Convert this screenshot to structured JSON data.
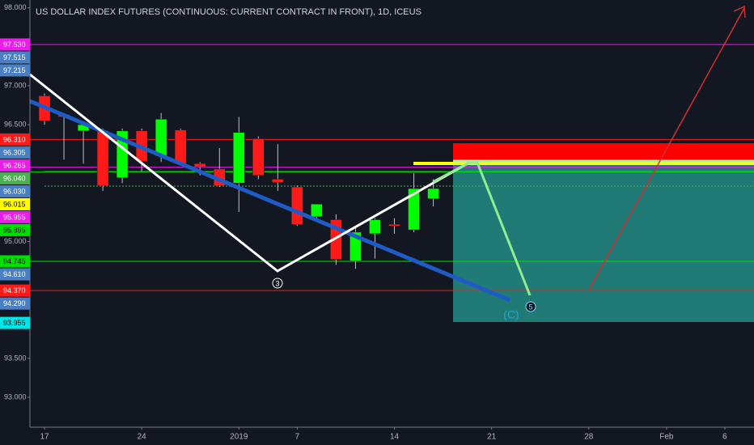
{
  "chart_data": {
    "type": "candlestick",
    "title": "US DOLLAR INDEX FUTURES (CONTINUOUS: CURRENT CONTRACT IN FRONT), 1D, ICEUS",
    "up_color": "#00ff00",
    "down_color": "#ff1a1a",
    "open": [
      96.87,
      96.63,
      96.42,
      96.42,
      95.82,
      96.42,
      96.1,
      96.43,
      96.0,
      95.93,
      95.75,
      96.32,
      95.8,
      95.7,
      95.32,
      95.28,
      94.75,
      95.1,
      95.22,
      95.15,
      95.55
    ],
    "high": [
      96.9,
      96.65,
      96.5,
      96.45,
      96.45,
      96.45,
      96.65,
      96.45,
      96.02,
      96.2,
      96.6,
      96.35,
      96.25,
      95.72,
      95.48,
      95.35,
      95.2,
      95.3,
      95.3,
      95.88,
      95.8
    ],
    "low": [
      96.5,
      96.05,
      96.0,
      95.65,
      95.75,
      95.9,
      96.02,
      95.98,
      95.85,
      95.7,
      95.38,
      95.8,
      95.65,
      95.2,
      95.25,
      94.7,
      94.65,
      94.78,
      95.1,
      95.12,
      95.45
    ],
    "close": [
      96.55,
      96.6,
      96.5,
      95.72,
      96.42,
      96.03,
      96.57,
      96.0,
      95.96,
      95.72,
      96.4,
      95.85,
      95.76,
      95.22,
      95.48,
      94.77,
      95.12,
      95.28,
      95.2,
      95.68,
      95.68
    ],
    "xlim": [
      -0.75,
      36.5
    ],
    "xticks": [
      {
        "value": 0,
        "label": "17"
      },
      {
        "value": 5,
        "label": "24"
      },
      {
        "value": 10,
        "label": "2019"
      },
      {
        "value": 13,
        "label": "7"
      },
      {
        "value": 18,
        "label": "14"
      },
      {
        "value": 23,
        "label": "21"
      },
      {
        "value": 28,
        "label": "28"
      },
      {
        "value": 32,
        "label": "Feb"
      },
      {
        "value": 35,
        "label": "6"
      }
    ],
    "ylim": [
      92.616,
      98.101
    ],
    "yticks": [
      {
        "value": 98,
        "label": "98.000"
      },
      {
        "value": 97,
        "label": "97.000"
      },
      {
        "value": 96.5,
        "label": "96.500"
      },
      {
        "value": 95,
        "label": "95.000"
      },
      {
        "value": 93.5,
        "label": "93.500"
      },
      {
        "value": 93,
        "label": "93.000"
      }
    ],
    "price_levels": [
      {
        "value": 97.53,
        "label": "97.530",
        "color": "#e91ee9",
        "line": true
      },
      {
        "value": 97.515,
        "label": "97.515",
        "color": "#4a7fc1",
        "line": false
      },
      {
        "value": 97.215,
        "label": "97.215",
        "color": "#4a7fc1",
        "line": false
      },
      {
        "value": 96.31,
        "label": "96.310",
        "color": "#ff1a1a",
        "line": true
      },
      {
        "value": 96.305,
        "label": "96.305",
        "color": "#4a7fc1",
        "line": false
      },
      {
        "value": 96.265,
        "label": "96.265",
        "color": "#e91ee9",
        "line": false
      },
      {
        "value": 96.04,
        "label": "96.040",
        "color": "#4caf50",
        "line": false
      },
      {
        "value": 96.03,
        "label": "96.030",
        "color": "#4a7fc1",
        "line": false
      },
      {
        "value": 96.015,
        "label": "96.015",
        "color": "#ffff00",
        "line": false
      },
      {
        "value": 95.955,
        "label": "95.955",
        "color": "#e91ee9",
        "line": true
      },
      {
        "value": 95.895,
        "label": "95.895",
        "color": "#00e000",
        "line": true
      },
      {
        "value": 94.745,
        "label": "94.745",
        "color": "#00e000",
        "line": true
      },
      {
        "value": 94.61,
        "label": "94.610",
        "color": "#4a7fc1",
        "line": false
      },
      {
        "value": 94.37,
        "label": "94.370",
        "color": "#ff1a1a",
        "line": true
      },
      {
        "value": 94.29,
        "label": "94.290",
        "color": "#4a7fc1",
        "line": false
      },
      {
        "value": 93.955,
        "label": "93.955",
        "color": "#00e5e5",
        "line": false
      }
    ],
    "annotations": {
      "wave_3": "3",
      "wave_5": "5",
      "wave_c": "(C)"
    }
  }
}
